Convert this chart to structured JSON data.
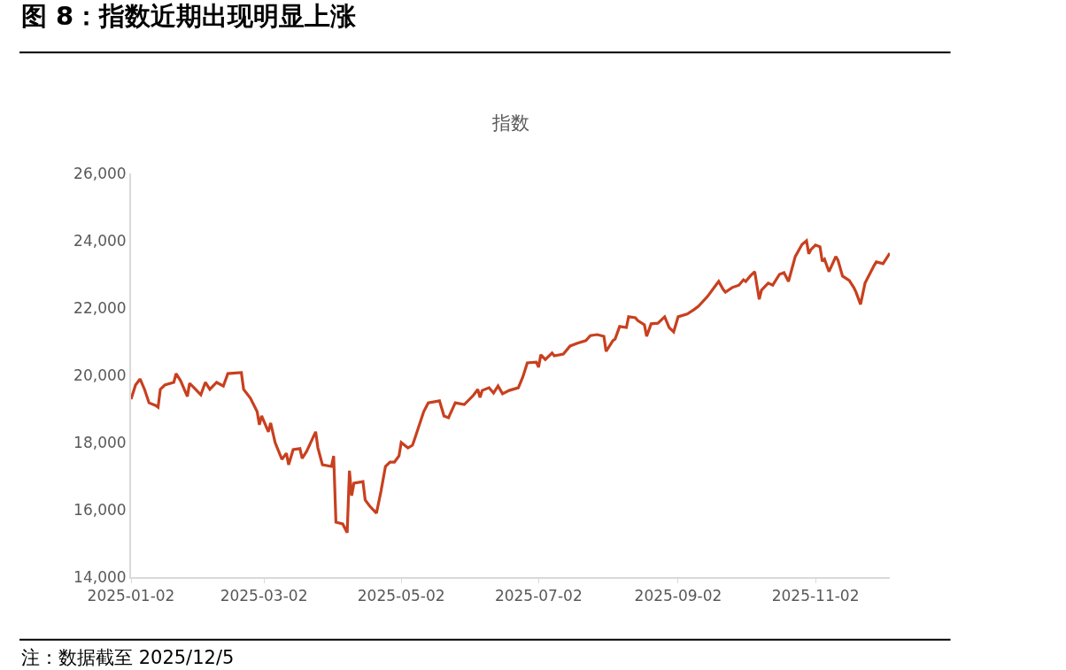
{
  "chart_data": {
    "type": "line",
    "title": "图 8：指数近期出现明显上涨",
    "subtitle": "指数",
    "x": [
      "2025-01-02",
      "2025-01-04",
      "2025-01-06",
      "2025-01-08",
      "2025-01-10",
      "2025-01-13",
      "2025-01-14",
      "2025-01-15",
      "2025-01-17",
      "2025-01-21",
      "2025-01-22",
      "2025-01-24",
      "2025-01-27",
      "2025-01-28",
      "2025-01-30",
      "2025-02-02",
      "2025-02-04",
      "2025-02-06",
      "2025-02-09",
      "2025-02-12",
      "2025-02-14",
      "2025-02-20",
      "2025-02-21",
      "2025-02-24",
      "2025-02-27",
      "2025-02-28",
      "2025-03-01",
      "2025-03-04",
      "2025-03-05",
      "2025-03-07",
      "2025-03-10",
      "2025-03-12",
      "2025-03-13",
      "2025-03-15",
      "2025-03-18",
      "2025-03-19",
      "2025-03-21",
      "2025-03-25",
      "2025-03-26",
      "2025-03-28",
      "2025-04-01",
      "2025-04-02",
      "2025-04-03",
      "2025-04-06",
      "2025-04-08",
      "2025-04-09",
      "2025-04-10",
      "2025-04-11",
      "2025-04-15",
      "2025-04-16",
      "2025-04-18",
      "2025-04-21",
      "2025-04-23",
      "2025-04-25",
      "2025-04-27",
      "2025-04-29",
      "2025-05-01",
      "2025-05-02",
      "2025-05-05",
      "2025-05-07",
      "2025-05-08",
      "2025-05-12",
      "2025-05-14",
      "2025-05-19",
      "2025-05-21",
      "2025-05-23",
      "2025-05-26",
      "2025-05-30",
      "2025-06-03",
      "2025-06-05",
      "2025-06-06",
      "2025-06-07",
      "2025-06-10",
      "2025-06-12",
      "2025-06-14",
      "2025-06-16",
      "2025-06-19",
      "2025-06-23",
      "2025-06-25",
      "2025-06-27",
      "2025-07-01",
      "2025-07-02",
      "2025-07-03",
      "2025-07-05",
      "2025-07-08",
      "2025-07-09",
      "2025-07-13",
      "2025-07-16",
      "2025-07-19",
      "2025-07-23",
      "2025-07-25",
      "2025-07-28",
      "2025-07-31",
      "2025-08-01",
      "2025-08-04",
      "2025-08-05",
      "2025-08-07",
      "2025-08-10",
      "2025-08-11",
      "2025-08-14",
      "2025-08-15",
      "2025-08-18",
      "2025-08-19",
      "2025-08-21",
      "2025-08-24",
      "2025-08-27",
      "2025-08-29",
      "2025-08-31",
      "2025-09-02",
      "2025-09-06",
      "2025-09-09",
      "2025-09-11",
      "2025-09-15",
      "2025-09-18",
      "2025-09-20",
      "2025-09-22",
      "2025-09-23",
      "2025-09-26",
      "2025-09-29",
      "2025-10-01",
      "2025-10-02",
      "2025-10-04",
      "2025-10-06",
      "2025-10-08",
      "2025-10-09",
      "2025-10-12",
      "2025-10-14",
      "2025-10-17",
      "2025-10-19",
      "2025-10-21",
      "2025-10-24",
      "2025-10-27",
      "2025-10-29",
      "2025-10-30",
      "2025-10-31",
      "2025-11-02",
      "2025-11-04",
      "2025-11-05",
      "2025-11-06",
      "2025-11-08",
      "2025-11-11",
      "2025-11-12",
      "2025-11-14",
      "2025-11-17",
      "2025-11-19",
      "2025-11-20",
      "2025-11-22",
      "2025-11-24",
      "2025-11-28",
      "2025-11-29",
      "2025-12-02",
      "2025-12-05"
    ],
    "series": [
      {
        "color": "#c8401f",
        "values": [
          19290,
          19710,
          19890,
          19580,
          19180,
          19100,
          19050,
          19580,
          19710,
          19790,
          20050,
          19840,
          19370,
          19760,
          19630,
          19420,
          19790,
          19580,
          19790,
          19680,
          20050,
          20080,
          19580,
          19320,
          18920,
          18530,
          18790,
          18320,
          18580,
          18000,
          17500,
          17680,
          17340,
          17790,
          17820,
          17530,
          17740,
          18320,
          17840,
          17340,
          17290,
          17600,
          15630,
          15580,
          15320,
          17160,
          16420,
          16790,
          16840,
          16290,
          16110,
          15900,
          16550,
          17290,
          17420,
          17420,
          17600,
          18000,
          17840,
          17920,
          18110,
          18920,
          19180,
          19240,
          18790,
          18740,
          19180,
          19130,
          19400,
          19580,
          19340,
          19550,
          19630,
          19470,
          19680,
          19450,
          19550,
          19630,
          19950,
          20370,
          20390,
          20240,
          20610,
          20470,
          20660,
          20580,
          20630,
          20870,
          20950,
          21030,
          21180,
          21210,
          21160,
          20710,
          21030,
          21080,
          21450,
          21420,
          21740,
          21710,
          21630,
          21500,
          21160,
          21530,
          21550,
          21740,
          21420,
          21290,
          21740,
          21820,
          21950,
          22050,
          22340,
          22610,
          22790,
          22550,
          22470,
          22610,
          22680,
          22840,
          22790,
          22950,
          23080,
          22260,
          22530,
          22740,
          22680,
          23000,
          23050,
          22790,
          23530,
          23890,
          24000,
          23610,
          23740,
          23870,
          23820,
          23390,
          23450,
          23080,
          23530,
          23420,
          22950,
          22820,
          22610,
          22470,
          22110,
          22740,
          23260,
          23370,
          23320,
          23630
        ]
      }
    ],
    "xlim": [
      "2025-01-02",
      "2025-12-05"
    ],
    "xticks": [
      "2025-01-02",
      "2025-03-02",
      "2025-05-02",
      "2025-07-02",
      "2025-09-02",
      "2025-11-02"
    ],
    "ylim": [
      14000,
      26000
    ],
    "yticks": [
      {
        "value": 14000,
        "label": "14,000"
      },
      {
        "value": 16000,
        "label": "16,000"
      },
      {
        "value": 18000,
        "label": "18,000"
      },
      {
        "value": 20000,
        "label": "20,000"
      },
      {
        "value": 22000,
        "label": "22,000"
      },
      {
        "value": 24000,
        "label": "24,000"
      },
      {
        "value": 26000,
        "label": "26,000"
      }
    ],
    "marker": "none",
    "line_style": "solid",
    "annotations": [
      "注：数据截至 2025/12/5"
    ]
  }
}
